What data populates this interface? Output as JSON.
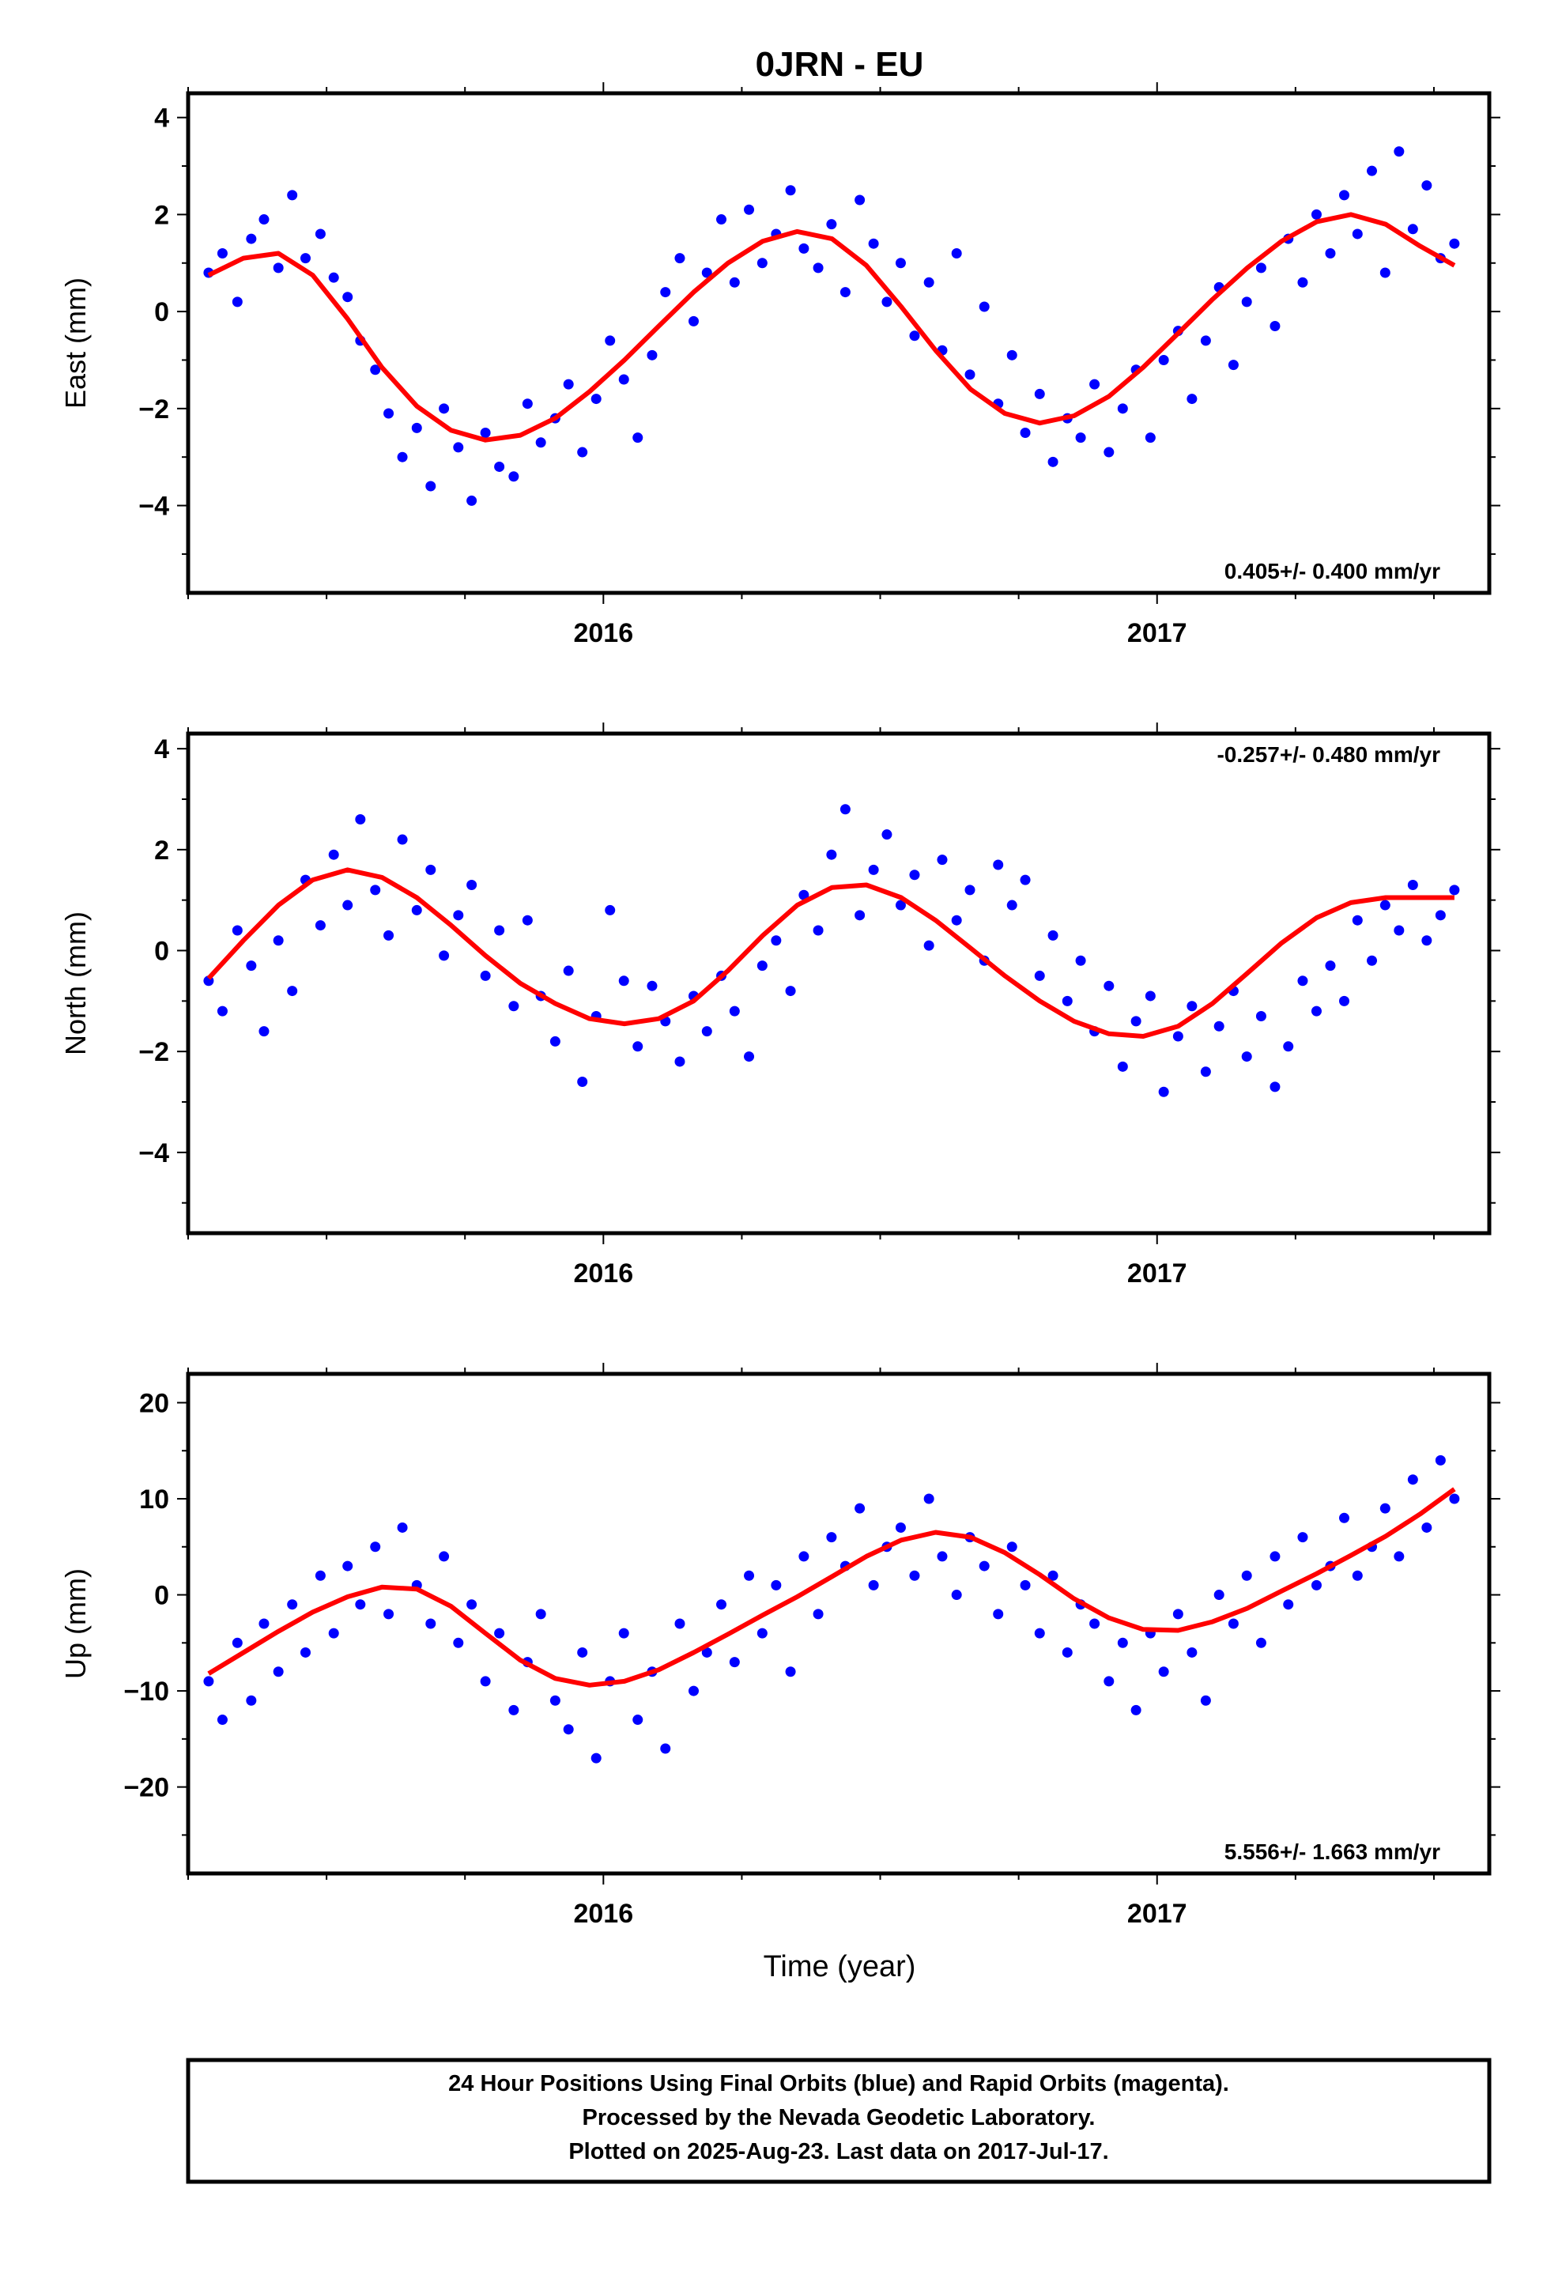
{
  "title": "0JRN - EU",
  "x_axis_label": "Time (year)",
  "footer": {
    "line1": "24 Hour Positions Using Final Orbits (blue) and Rapid Orbits (magenta).",
    "line2": "Processed by the Nevada Geodetic Laboratory.",
    "line3": "Plotted on 2025-Aug-23. Last data on 2017-Jul-17."
  },
  "colors": {
    "data": "#0000ff",
    "model": "#ff0000",
    "frame": "#000000"
  },
  "chart_data": [
    {
      "type": "scatter",
      "title": "0JRN - EU",
      "ylabel": "East (mm)",
      "xlabel": "",
      "xlim": [
        2015.25,
        2017.6
      ],
      "ylim": [
        -5.8,
        4.5
      ],
      "xticks": [
        2016,
        2017
      ],
      "yticks": [
        -4,
        -2,
        0,
        2,
        4
      ],
      "ytick_labels": [
        "−4",
        "−2",
        "0",
        "2",
        "4"
      ],
      "rate_label": "0.405+/- 0.400 mm/yr",
      "rate_position": "bottom-right",
      "grid": false,
      "series": [
        {
          "kind": "points",
          "x": [
            2015.287,
            2015.312,
            2015.339,
            2015.364,
            2015.387,
            2015.413,
            2015.438,
            2015.462,
            2015.489,
            2015.513,
            2015.538,
            2015.561,
            2015.588,
            2015.612,
            2015.637,
            2015.663,
            2015.688,
            2015.712,
            2015.738,
            2015.762,
            2015.787,
            2015.812,
            2015.838,
            2015.863,
            2015.887,
            2015.913,
            2015.937,
            2015.962,
            2015.987,
            2016.012,
            2016.037,
            2016.062,
            2016.088,
            2016.112,
            2016.138,
            2016.163,
            2016.187,
            2016.213,
            2016.237,
            2016.263,
            2016.287,
            2016.312,
            2016.338,
            2016.362,
            2016.388,
            2016.412,
            2016.437,
            2016.463,
            2016.488,
            2016.512,
            2016.537,
            2016.562,
            2016.588,
            2016.612,
            2016.638,
            2016.662,
            2016.688,
            2016.713,
            2016.738,
            2016.762,
            2016.788,
            2016.812,
            2016.838,
            2016.862,
            2016.887,
            2016.913,
            2016.938,
            2016.962,
            2016.988,
            2017.012,
            2017.038,
            2017.063,
            2017.088,
            2017.112,
            2017.138,
            2017.162,
            2017.188,
            2017.213,
            2017.237,
            2017.263,
            2017.288,
            2017.313,
            2017.338,
            2017.362,
            2017.388,
            2017.412,
            2017.437,
            2017.462,
            2017.487,
            2017.512,
            2017.537
          ],
          "y": [
            0.8,
            1.2,
            0.2,
            1.5,
            1.9,
            0.9,
            2.4,
            1.1,
            1.6,
            0.7,
            0.3,
            -0.6,
            -1.2,
            -2.1,
            -3.0,
            -2.4,
            -3.6,
            -2.0,
            -2.8,
            -3.9,
            -2.5,
            -3.2,
            -3.4,
            -1.9,
            -2.7,
            -2.2,
            -1.5,
            -2.9,
            -1.8,
            -0.6,
            -1.4,
            -2.6,
            -0.9,
            0.4,
            1.1,
            -0.2,
            0.8,
            1.9,
            0.6,
            2.1,
            1.0,
            1.6,
            2.5,
            1.3,
            0.9,
            1.8,
            0.4,
            2.3,
            1.4,
            0.2,
            1.0,
            -0.5,
            0.6,
            -0.8,
            1.2,
            -1.3,
            0.1,
            -1.9,
            -0.9,
            -2.5,
            -1.7,
            -3.1,
            -2.2,
            -2.6,
            -1.5,
            -2.9,
            -2.0,
            -1.2,
            -2.6,
            -1.0,
            -0.4,
            -1.8,
            -0.6,
            0.5,
            -1.1,
            0.2,
            0.9,
            -0.3,
            1.5,
            0.6,
            2.0,
            1.2,
            2.4,
            1.6,
            2.9,
            0.8,
            3.3,
            1.7,
            2.6,
            1.1,
            1.4
          ]
        },
        {
          "kind": "model",
          "x": [
            2015.287,
            2015.35,
            2015.413,
            2015.475,
            2015.538,
            2015.6,
            2015.663,
            2015.725,
            2015.787,
            2015.85,
            2015.913,
            2015.975,
            2016.038,
            2016.1,
            2016.163,
            2016.225,
            2016.288,
            2016.35,
            2016.413,
            2016.475,
            2016.538,
            2016.6,
            2016.663,
            2016.725,
            2016.788,
            2016.85,
            2016.913,
            2016.975,
            2017.038,
            2017.1,
            2017.163,
            2017.225,
            2017.288,
            2017.35,
            2017.413,
            2017.475,
            2017.537
          ],
          "y": [
            0.75,
            1.1,
            1.2,
            0.75,
            -0.15,
            -1.15,
            -1.95,
            -2.45,
            -2.65,
            -2.55,
            -2.2,
            -1.65,
            -1.0,
            -0.3,
            0.4,
            1.0,
            1.45,
            1.65,
            1.5,
            0.95,
            0.1,
            -0.8,
            -1.6,
            -2.1,
            -2.3,
            -2.15,
            -1.75,
            -1.15,
            -0.45,
            0.25,
            0.9,
            1.45,
            1.85,
            2.0,
            1.8,
            1.35,
            0.95
          ]
        }
      ]
    },
    {
      "type": "scatter",
      "ylabel": "North (mm)",
      "xlabel": "",
      "xlim": [
        2015.25,
        2017.6
      ],
      "ylim": [
        -5.6,
        4.3
      ],
      "xticks": [
        2016,
        2017
      ],
      "yticks": [
        -4,
        -2,
        0,
        2,
        4
      ],
      "ytick_labels": [
        "−4",
        "−2",
        "0",
        "2",
        "4"
      ],
      "rate_label": "-0.257+/- 0.480 mm/yr",
      "rate_position": "top-right",
      "grid": false,
      "series": [
        {
          "kind": "points",
          "x": [
            2015.287,
            2015.312,
            2015.339,
            2015.364,
            2015.387,
            2015.413,
            2015.438,
            2015.462,
            2015.489,
            2015.513,
            2015.538,
            2015.561,
            2015.588,
            2015.612,
            2015.637,
            2015.663,
            2015.688,
            2015.712,
            2015.738,
            2015.762,
            2015.787,
            2015.812,
            2015.838,
            2015.863,
            2015.887,
            2015.913,
            2015.937,
            2015.962,
            2015.987,
            2016.012,
            2016.037,
            2016.062,
            2016.088,
            2016.112,
            2016.138,
            2016.163,
            2016.187,
            2016.213,
            2016.237,
            2016.263,
            2016.287,
            2016.312,
            2016.338,
            2016.362,
            2016.388,
            2016.412,
            2016.437,
            2016.463,
            2016.488,
            2016.512,
            2016.537,
            2016.562,
            2016.588,
            2016.612,
            2016.638,
            2016.662,
            2016.688,
            2016.713,
            2016.738,
            2016.762,
            2016.788,
            2016.812,
            2016.838,
            2016.862,
            2016.887,
            2016.913,
            2016.938,
            2016.962,
            2016.988,
            2017.012,
            2017.038,
            2017.063,
            2017.088,
            2017.112,
            2017.138,
            2017.162,
            2017.188,
            2017.213,
            2017.237,
            2017.263,
            2017.288,
            2017.313,
            2017.338,
            2017.362,
            2017.388,
            2017.412,
            2017.437,
            2017.462,
            2017.487,
            2017.512,
            2017.537
          ],
          "y": [
            -0.6,
            -1.2,
            0.4,
            -0.3,
            -1.6,
            0.2,
            -0.8,
            1.4,
            0.5,
            1.9,
            0.9,
            2.6,
            1.2,
            0.3,
            2.2,
            0.8,
            1.6,
            -0.1,
            0.7,
            1.3,
            -0.5,
            0.4,
            -1.1,
            0.6,
            -0.9,
            -1.8,
            -0.4,
            -2.6,
            -1.3,
            0.8,
            -0.6,
            -1.9,
            -0.7,
            -1.4,
            -2.2,
            -0.9,
            -1.6,
            -0.5,
            -1.2,
            -2.1,
            -0.3,
            0.2,
            -0.8,
            1.1,
            0.4,
            1.9,
            2.8,
            0.7,
            1.6,
            2.3,
            0.9,
            1.5,
            0.1,
            1.8,
            0.6,
            1.2,
            -0.2,
            1.7,
            0.9,
            1.4,
            -0.5,
            0.3,
            -1.0,
            -0.2,
            -1.6,
            -0.7,
            -2.3,
            -1.4,
            -0.9,
            -2.8,
            -1.7,
            -1.1,
            -2.4,
            -1.5,
            -0.8,
            -2.1,
            -1.3,
            -2.7,
            -1.9,
            -0.6,
            -1.2,
            -0.3,
            -1.0,
            0.6,
            -0.2,
            0.9,
            0.4,
            1.3,
            0.2,
            0.7,
            1.2
          ]
        },
        {
          "kind": "model",
          "x": [
            2015.287,
            2015.35,
            2015.413,
            2015.475,
            2015.538,
            2015.6,
            2015.663,
            2015.725,
            2015.787,
            2015.85,
            2015.913,
            2015.975,
            2016.038,
            2016.1,
            2016.163,
            2016.225,
            2016.288,
            2016.35,
            2016.413,
            2016.475,
            2016.538,
            2016.6,
            2016.663,
            2016.725,
            2016.788,
            2016.85,
            2016.913,
            2016.975,
            2017.038,
            2017.1,
            2017.163,
            2017.225,
            2017.288,
            2017.35,
            2017.413,
            2017.475,
            2017.537
          ],
          "y": [
            -0.55,
            0.2,
            0.9,
            1.4,
            1.6,
            1.45,
            1.05,
            0.5,
            -0.1,
            -0.65,
            -1.05,
            -1.35,
            -1.45,
            -1.35,
            -1.0,
            -0.4,
            0.3,
            0.9,
            1.25,
            1.3,
            1.05,
            0.6,
            0.05,
            -0.5,
            -1.0,
            -1.4,
            -1.65,
            -1.7,
            -1.5,
            -1.05,
            -0.45,
            0.15,
            0.65,
            0.95,
            1.05,
            1.05,
            1.05
          ]
        }
      ]
    },
    {
      "type": "scatter",
      "ylabel": "Up (mm)",
      "xlabel": "Time (year)",
      "xlim": [
        2015.25,
        2017.6
      ],
      "ylim": [
        -29,
        23
      ],
      "xticks": [
        2016,
        2017
      ],
      "yticks": [
        -20,
        -10,
        0,
        10,
        20
      ],
      "ytick_labels": [
        "−20",
        "−10",
        "0",
        "10",
        "20"
      ],
      "rate_label": "5.556+/- 1.663 mm/yr",
      "rate_position": "bottom-right",
      "grid": false,
      "series": [
        {
          "kind": "points",
          "x": [
            2015.287,
            2015.312,
            2015.339,
            2015.364,
            2015.387,
            2015.413,
            2015.438,
            2015.462,
            2015.489,
            2015.513,
            2015.538,
            2015.561,
            2015.588,
            2015.612,
            2015.637,
            2015.663,
            2015.688,
            2015.712,
            2015.738,
            2015.762,
            2015.787,
            2015.812,
            2015.838,
            2015.863,
            2015.887,
            2015.913,
            2015.937,
            2015.962,
            2015.987,
            2016.012,
            2016.037,
            2016.062,
            2016.088,
            2016.112,
            2016.138,
            2016.163,
            2016.187,
            2016.213,
            2016.237,
            2016.263,
            2016.287,
            2016.312,
            2016.338,
            2016.362,
            2016.388,
            2016.412,
            2016.437,
            2016.463,
            2016.488,
            2016.512,
            2016.537,
            2016.562,
            2016.588,
            2016.612,
            2016.638,
            2016.662,
            2016.688,
            2016.713,
            2016.738,
            2016.762,
            2016.788,
            2016.812,
            2016.838,
            2016.862,
            2016.887,
            2016.913,
            2016.938,
            2016.962,
            2016.988,
            2017.012,
            2017.038,
            2017.063,
            2017.088,
            2017.112,
            2017.138,
            2017.162,
            2017.188,
            2017.213,
            2017.237,
            2017.263,
            2017.288,
            2017.313,
            2017.338,
            2017.362,
            2017.388,
            2017.412,
            2017.437,
            2017.462,
            2017.487,
            2017.512,
            2017.537
          ],
          "y": [
            -9,
            -13,
            -5,
            -11,
            -3,
            -8,
            -1,
            -6,
            2,
            -4,
            3,
            -1,
            5,
            -2,
            7,
            1,
            -3,
            4,
            -5,
            -1,
            -9,
            -4,
            -12,
            -7,
            -2,
            -11,
            -14,
            -6,
            -17,
            -9,
            -4,
            -13,
            -8,
            -16,
            -3,
            -10,
            -6,
            -1,
            -7,
            2,
            -4,
            1,
            -8,
            4,
            -2,
            6,
            3,
            9,
            1,
            5,
            7,
            2,
            10,
            4,
            0,
            6,
            3,
            -2,
            5,
            1,
            -4,
            2,
            -6,
            -1,
            -3,
            -9,
            -5,
            -12,
            -4,
            -8,
            -2,
            -6,
            -11,
            0,
            -3,
            2,
            -5,
            4,
            -1,
            6,
            1,
            3,
            8,
            2,
            5,
            9,
            4,
            12,
            7,
            14,
            10
          ]
        },
        {
          "kind": "model",
          "x": [
            2015.287,
            2015.35,
            2015.413,
            2015.475,
            2015.538,
            2015.6,
            2015.663,
            2015.725,
            2015.787,
            2015.85,
            2015.913,
            2015.975,
            2016.038,
            2016.1,
            2016.163,
            2016.225,
            2016.288,
            2016.35,
            2016.413,
            2016.475,
            2016.538,
            2016.6,
            2016.663,
            2016.725,
            2016.788,
            2016.85,
            2016.913,
            2016.975,
            2017.038,
            2017.1,
            2017.163,
            2017.225,
            2017.288,
            2017.35,
            2017.413,
            2017.475,
            2017.537
          ],
          "y": [
            -8.2,
            -6.0,
            -3.8,
            -1.8,
            -0.2,
            0.8,
            0.6,
            -1.2,
            -4.0,
            -6.8,
            -8.7,
            -9.4,
            -9.0,
            -7.8,
            -6.0,
            -4.1,
            -2.1,
            -0.2,
            1.9,
            4.0,
            5.7,
            6.5,
            6.0,
            4.4,
            2.1,
            -0.4,
            -2.4,
            -3.6,
            -3.7,
            -2.8,
            -1.4,
            0.4,
            2.2,
            4.1,
            6.1,
            8.4,
            11.0
          ]
        }
      ]
    }
  ]
}
